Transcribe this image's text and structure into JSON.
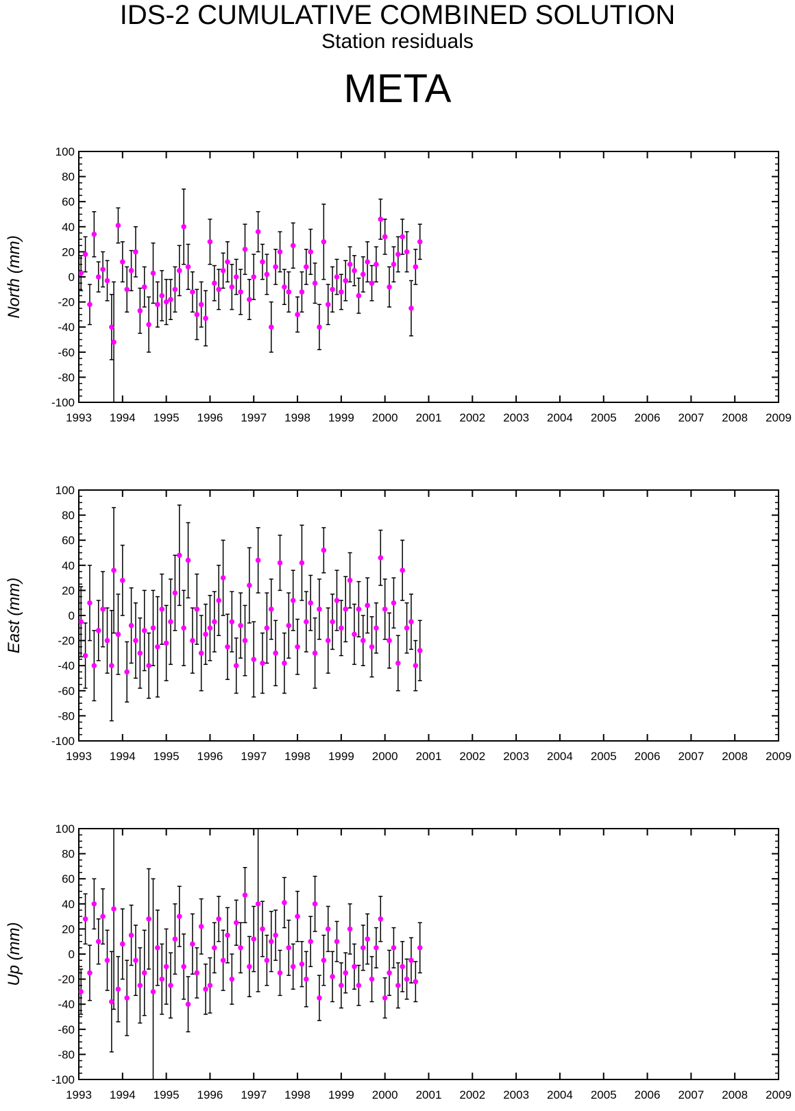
{
  "header": {
    "title": "IDS-2 CUMULATIVE COMBINED SOLUTION",
    "subtitle": "Station residuals",
    "station": "META"
  },
  "colors": {
    "point": "#ff00ff",
    "errorbar": "#000000",
    "axis": "#000000"
  },
  "chart_data": [
    {
      "type": "scatter",
      "ylabel": "North (mm)",
      "xlim": [
        1993,
        2009
      ],
      "ylim": [
        -100,
        100
      ],
      "xticks": [
        "1993",
        "1994",
        "1995",
        "1996",
        "1997",
        "1998",
        "1999",
        "2000",
        "2001",
        "2002",
        "2003",
        "2004",
        "2005",
        "2006",
        "2007",
        "2008",
        "2009"
      ],
      "yticks": [
        "100",
        "80",
        "60",
        "40",
        "20",
        "0",
        "-20",
        "-40",
        "-60",
        "-80",
        "-100"
      ],
      "error_bars": true,
      "x": [
        1993.05,
        1993.15,
        1993.25,
        1993.35,
        1993.45,
        1993.55,
        1993.65,
        1993.75,
        1993.8,
        1993.9,
        1994.0,
        1994.1,
        1994.2,
        1994.3,
        1994.4,
        1994.5,
        1994.6,
        1994.7,
        1994.8,
        1994.9,
        1995.0,
        1995.1,
        1995.2,
        1995.3,
        1995.4,
        1995.5,
        1995.6,
        1995.7,
        1995.8,
        1995.9,
        1996.0,
        1996.1,
        1996.2,
        1996.3,
        1996.4,
        1996.5,
        1996.6,
        1996.7,
        1996.8,
        1996.9,
        1997.0,
        1997.1,
        1997.2,
        1997.3,
        1997.4,
        1997.5,
        1997.6,
        1997.7,
        1997.8,
        1997.9,
        1998.0,
        1998.1,
        1998.2,
        1998.3,
        1998.4,
        1998.5,
        1998.6,
        1998.7,
        1998.8,
        1998.9,
        1999.0,
        1999.1,
        1999.2,
        1999.3,
        1999.4,
        1999.5,
        1999.6,
        1999.7,
        1999.8,
        1999.9,
        2000.0,
        2000.1,
        2000.2,
        2000.3,
        2000.4,
        2000.5,
        2000.6,
        2000.7,
        2000.8
      ],
      "y": [
        3,
        18,
        -22,
        34,
        0,
        6,
        -3,
        -40,
        -52,
        41,
        12,
        -10,
        5,
        20,
        -27,
        -8,
        -38,
        3,
        -22,
        -15,
        -20,
        -18,
        -10,
        5,
        40,
        8,
        -12,
        -30,
        -22,
        -33,
        28,
        -5,
        -10,
        5,
        12,
        -8,
        0,
        -12,
        22,
        -18,
        0,
        36,
        12,
        2,
        -40,
        8,
        20,
        -8,
        -12,
        25,
        -30,
        -12,
        8,
        20,
        -5,
        -40,
        28,
        -22,
        -10,
        0,
        -12,
        -3,
        10,
        5,
        -15,
        2,
        12,
        -5,
        10,
        46,
        32,
        -8,
        10,
        18,
        32,
        20,
        -25,
        8,
        28
      ],
      "err": [
        14,
        14,
        16,
        18,
        12,
        14,
        16,
        26,
        48,
        14,
        16,
        18,
        16,
        20,
        18,
        16,
        22,
        24,
        18,
        20,
        18,
        16,
        18,
        20,
        30,
        18,
        16,
        20,
        18,
        22,
        18,
        14,
        16,
        14,
        16,
        18,
        14,
        18,
        20,
        16,
        18,
        16,
        14,
        16,
        20,
        14,
        16,
        14,
        16,
        18,
        14,
        16,
        14,
        18,
        16,
        18,
        30,
        16,
        18,
        14,
        14,
        16,
        14,
        12,
        14,
        14,
        16,
        14,
        14,
        16,
        14,
        16,
        14,
        14,
        14,
        16,
        22,
        14,
        14
      ]
    },
    {
      "type": "scatter",
      "ylabel": "East (mm)",
      "xlim": [
        1993,
        2009
      ],
      "ylim": [
        -100,
        100
      ],
      "xticks": [
        "1993",
        "1994",
        "1995",
        "1996",
        "1997",
        "1998",
        "1999",
        "2000",
        "2001",
        "2002",
        "2003",
        "2004",
        "2005",
        "2006",
        "2007",
        "2008",
        "2009"
      ],
      "yticks": [
        "100",
        "80",
        "60",
        "40",
        "20",
        "0",
        "-20",
        "-40",
        "-60",
        "-80",
        "-100"
      ],
      "error_bars": true,
      "x": [
        1993.05,
        1993.15,
        1993.25,
        1993.35,
        1993.45,
        1993.55,
        1993.65,
        1993.75,
        1993.8,
        1993.9,
        1994.0,
        1994.1,
        1994.2,
        1994.3,
        1994.4,
        1994.5,
        1994.6,
        1994.7,
        1994.8,
        1994.9,
        1995.0,
        1995.1,
        1995.2,
        1995.3,
        1995.4,
        1995.5,
        1995.6,
        1995.7,
        1995.8,
        1995.9,
        1996.0,
        1996.1,
        1996.2,
        1996.3,
        1996.4,
        1996.5,
        1996.6,
        1996.7,
        1996.8,
        1996.9,
        1997.0,
        1997.1,
        1997.2,
        1997.3,
        1997.4,
        1997.5,
        1997.6,
        1997.7,
        1997.8,
        1997.9,
        1998.0,
        1998.1,
        1998.2,
        1998.3,
        1998.4,
        1998.5,
        1998.6,
        1998.7,
        1998.8,
        1998.9,
        1999.0,
        1999.1,
        1999.2,
        1999.3,
        1999.4,
        1999.5,
        1999.6,
        1999.7,
        1999.8,
        1999.9,
        2000.0,
        2000.1,
        2000.2,
        2000.3,
        2000.4,
        2000.5,
        2000.6,
        2000.7,
        2000.8
      ],
      "y": [
        -5,
        -32,
        10,
        -40,
        -12,
        5,
        -20,
        -40,
        36,
        -15,
        28,
        -45,
        -8,
        -20,
        -30,
        -12,
        -40,
        -10,
        -25,
        5,
        -22,
        -5,
        18,
        48,
        -10,
        44,
        -20,
        5,
        -30,
        -15,
        -10,
        -5,
        12,
        30,
        -25,
        -5,
        -40,
        -8,
        -20,
        24,
        -35,
        44,
        -38,
        -10,
        5,
        -30,
        42,
        -38,
        -8,
        12,
        -25,
        42,
        -5,
        10,
        -30,
        5,
        52,
        -20,
        -5,
        12,
        -10,
        5,
        28,
        -15,
        5,
        -20,
        8,
        -25,
        -10,
        46,
        5,
        -20,
        10,
        -38,
        36,
        -10,
        -5,
        -40,
        -28
      ],
      "err": [
        28,
        26,
        30,
        28,
        24,
        30,
        26,
        44,
        50,
        32,
        28,
        24,
        30,
        30,
        28,
        32,
        26,
        30,
        40,
        28,
        30,
        34,
        30,
        40,
        30,
        30,
        26,
        28,
        30,
        24,
        26,
        24,
        28,
        30,
        26,
        24,
        22,
        26,
        28,
        30,
        30,
        26,
        24,
        28,
        24,
        26,
        22,
        24,
        26,
        24,
        22,
        30,
        24,
        22,
        28,
        24,
        18,
        26,
        22,
        24,
        22,
        26,
        22,
        24,
        22,
        20,
        22,
        24,
        20,
        22,
        24,
        22,
        20,
        22,
        24,
        20,
        22,
        20,
        24
      ]
    },
    {
      "type": "scatter",
      "ylabel": "Up (mm)",
      "xlim": [
        1993,
        2009
      ],
      "ylim": [
        -100,
        100
      ],
      "xticks": [
        "1993",
        "1994",
        "1995",
        "1996",
        "1997",
        "1998",
        "1999",
        "2000",
        "2001",
        "2002",
        "2003",
        "2004",
        "2005",
        "2006",
        "2007",
        "2008",
        "2009"
      ],
      "yticks": [
        "100",
        "80",
        "60",
        "40",
        "20",
        "0",
        "-20",
        "-40",
        "-60",
        "-80",
        "-100"
      ],
      "error_bars": true,
      "x": [
        1993.05,
        1993.15,
        1993.25,
        1993.35,
        1993.45,
        1993.55,
        1993.65,
        1993.75,
        1993.8,
        1993.9,
        1994.0,
        1994.1,
        1994.2,
        1994.3,
        1994.4,
        1994.5,
        1994.6,
        1994.7,
        1994.8,
        1994.9,
        1995.0,
        1995.1,
        1995.2,
        1995.3,
        1995.4,
        1995.5,
        1995.6,
        1995.7,
        1995.8,
        1995.9,
        1996.0,
        1996.1,
        1996.2,
        1996.3,
        1996.4,
        1996.5,
        1996.6,
        1996.7,
        1996.8,
        1996.9,
        1997.0,
        1997.1,
        1997.2,
        1997.3,
        1997.4,
        1997.5,
        1997.6,
        1997.7,
        1997.8,
        1997.9,
        1998.0,
        1998.1,
        1998.2,
        1998.3,
        1998.4,
        1998.5,
        1998.6,
        1998.7,
        1998.8,
        1998.9,
        1999.0,
        1999.1,
        1999.2,
        1999.3,
        1999.4,
        1999.5,
        1999.6,
        1999.7,
        1999.8,
        1999.9,
        2000.0,
        2000.1,
        2000.2,
        2000.3,
        2000.4,
        2000.5,
        2000.6,
        2000.7,
        2000.8
      ],
      "y": [
        -30,
        28,
        -15,
        40,
        10,
        30,
        -5,
        -38,
        36,
        -28,
        8,
        -35,
        15,
        -5,
        -25,
        -15,
        28,
        -30,
        5,
        -20,
        -10,
        -25,
        12,
        30,
        -10,
        -40,
        8,
        -15,
        22,
        -28,
        -25,
        5,
        28,
        -5,
        15,
        -20,
        25,
        5,
        47,
        -10,
        12,
        40,
        20,
        -5,
        10,
        15,
        -15,
        41,
        5,
        -10,
        30,
        -8,
        -20,
        10,
        40,
        -35,
        -5,
        20,
        -18,
        10,
        -25,
        -15,
        20,
        -10,
        -25,
        5,
        12,
        -20,
        5,
        28,
        -35,
        -15,
        5,
        -25,
        -10,
        -20,
        -5,
        -22,
        5
      ],
      "err": [
        18,
        20,
        22,
        20,
        18,
        22,
        24,
        40,
        80,
        26,
        28,
        30,
        24,
        28,
        30,
        34,
        40,
        90,
        30,
        28,
        30,
        26,
        28,
        24,
        26,
        22,
        24,
        20,
        22,
        20,
        22,
        20,
        18,
        24,
        22,
        20,
        18,
        20,
        22,
        24,
        26,
        70,
        22,
        20,
        24,
        20,
        18,
        20,
        22,
        18,
        20,
        18,
        22,
        20,
        22,
        18,
        20,
        18,
        20,
        16,
        18,
        16,
        20,
        18,
        16,
        18,
        20,
        18,
        16,
        18,
        16,
        18,
        16,
        18,
        20,
        16,
        18,
        16,
        20
      ]
    }
  ]
}
